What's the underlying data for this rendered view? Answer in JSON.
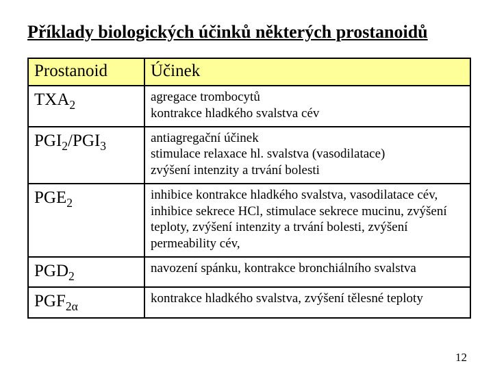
{
  "title": "Příklady biologických účinků některých prostanoidů",
  "colors": {
    "header_bg": "#ffff99",
    "border": "#000000",
    "text": "#000000",
    "page_bg": "#ffffff"
  },
  "table": {
    "headers": {
      "left": "Prostanoid",
      "right": "Účinek"
    },
    "rows": [
      {
        "left_parts": [
          "TXA",
          "2",
          ""
        ],
        "right": "agregace trombocytů\nkontrakce hladkého svalstva cév"
      },
      {
        "left_parts": [
          "PGI",
          "2",
          "/PGI",
          "3",
          ""
        ],
        "right": "antiagregační účinek\nstimulace relaxace hl. svalstva (vasodilatace)\nzvýšení intenzity a trvání bolesti"
      },
      {
        "left_parts": [
          "PGE",
          "2",
          ""
        ],
        "right": "inhibice kontrakce hladkého svalstva, vasodilatace cév, inhibice sekrece HCl, stimulace sekrece mucinu, zvýšení teploty, zvýšení intenzity a trvání bolesti, zvýšení permeability cév,"
      },
      {
        "left_parts": [
          "PGD",
          "2",
          ""
        ],
        "right": "navození spánku, kontrakce bronchiálního svalstva"
      },
      {
        "left_parts": [
          "PGF",
          "2α",
          ""
        ],
        "right": "kontrakce hladkého svalstva, zvýšení tělesné teploty"
      }
    ]
  },
  "page_number": "12"
}
